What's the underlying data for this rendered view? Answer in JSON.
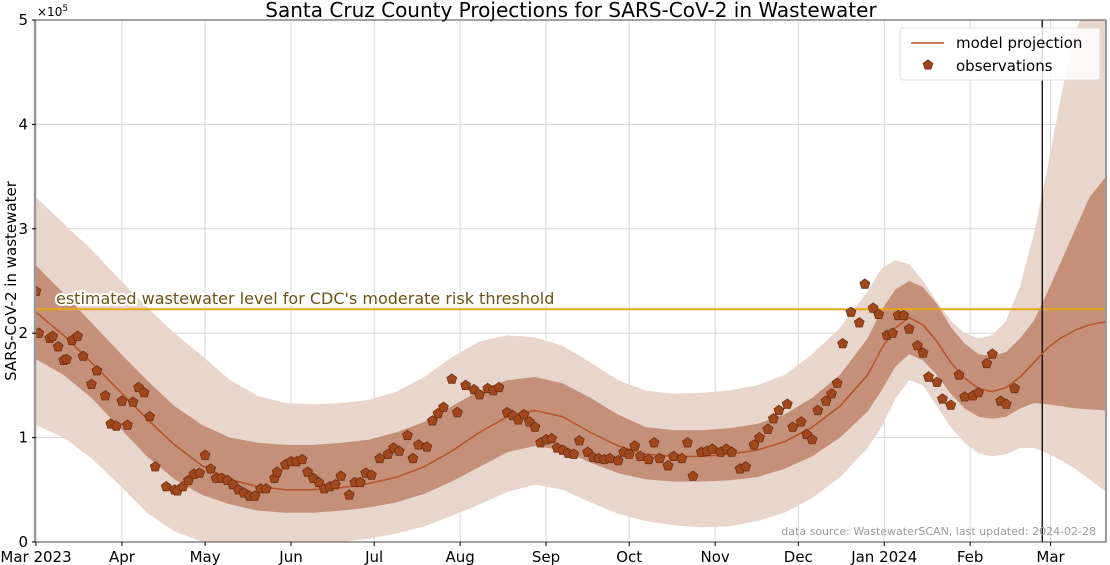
{
  "chart_data": {
    "type": "line",
    "title": "Santa Cruz County Projections for SARS-CoV-2 in Wastewater",
    "xlabel": "",
    "ylabel": "SARS-CoV-2 in wastewater",
    "y_multiplier_label": "×10",
    "y_multiplier_exponent": "5",
    "y_units_note": "values below are in units of 1e5",
    "ylim": [
      0,
      5
    ],
    "y_ticks": [
      0,
      1,
      2,
      3,
      4,
      5
    ],
    "y_tick_labels": [
      "0",
      "1",
      "2",
      "3",
      "4",
      "5"
    ],
    "x_origin_date": "2023-03-01",
    "x_units": "days since 2023-03-01",
    "xlim": [
      0,
      386
    ],
    "x_ticks": [
      0,
      31,
      61,
      92,
      122,
      153,
      184,
      214,
      245,
      275,
      306,
      337,
      366
    ],
    "x_tick_labels": [
      "Mar 2023",
      "Apr",
      "May",
      "Jun",
      "Jul",
      "Aug",
      "Sep",
      "Oct",
      "Nov",
      "Dec",
      "Jan 2024",
      "Feb",
      "Mar"
    ],
    "grid": true,
    "legend": {
      "position": "top-right",
      "entries": [
        {
          "label": "model projection",
          "kind": "line"
        },
        {
          "label": "observations",
          "kind": "pentagon-marker"
        }
      ]
    },
    "threshold": {
      "value": 2.23,
      "label": "estimated wastewater level for CDC's moderate risk threshold",
      "color": "#e6a817"
    },
    "forecast_start_day": 363,
    "annotation_source": "data source: WastewaterSCAN, last updated: 2024-02-28",
    "colors": {
      "line": "#b5532a",
      "marker_fill": "#a0481d",
      "marker_edge": "#6e2e12",
      "band_inner": "#c4907a",
      "band_outer": "#e8d5cc",
      "grid": "#d6d6d6",
      "vline": "#000000"
    },
    "model": {
      "x": [
        0,
        10,
        20,
        30,
        40,
        50,
        60,
        70,
        80,
        90,
        100,
        110,
        120,
        130,
        140,
        150,
        160,
        170,
        180,
        190,
        200,
        210,
        220,
        230,
        240,
        250,
        260,
        270,
        280,
        290,
        300,
        305,
        310,
        315,
        320,
        325,
        330,
        335,
        340,
        345,
        350,
        355,
        360,
        365,
        370,
        375,
        380,
        386
      ],
      "median": [
        2.2,
        1.98,
        1.72,
        1.45,
        1.18,
        0.93,
        0.73,
        0.6,
        0.53,
        0.5,
        0.5,
        0.52,
        0.56,
        0.62,
        0.72,
        0.87,
        1.05,
        1.2,
        1.26,
        1.2,
        1.05,
        0.92,
        0.84,
        0.82,
        0.82,
        0.84,
        0.88,
        0.96,
        1.1,
        1.3,
        1.6,
        1.85,
        2.05,
        2.15,
        2.08,
        1.92,
        1.72,
        1.57,
        1.47,
        1.44,
        1.48,
        1.58,
        1.72,
        1.86,
        1.96,
        2.03,
        2.08,
        2.11
      ],
      "inner_lower": [
        1.75,
        1.6,
        1.38,
        1.1,
        0.82,
        0.6,
        0.45,
        0.36,
        0.3,
        0.28,
        0.28,
        0.3,
        0.33,
        0.38,
        0.46,
        0.58,
        0.72,
        0.86,
        0.92,
        0.88,
        0.76,
        0.66,
        0.6,
        0.58,
        0.58,
        0.59,
        0.62,
        0.7,
        0.82,
        1.0,
        1.25,
        1.45,
        1.68,
        1.8,
        1.74,
        1.6,
        1.42,
        1.28,
        1.2,
        1.18,
        1.2,
        1.28,
        1.33,
        1.32,
        1.3,
        1.28,
        1.27,
        1.26
      ],
      "inner_upper": [
        2.65,
        2.38,
        2.1,
        1.82,
        1.55,
        1.3,
        1.12,
        1.0,
        0.95,
        0.93,
        0.93,
        0.95,
        0.98,
        1.05,
        1.15,
        1.3,
        1.45,
        1.55,
        1.58,
        1.52,
        1.38,
        1.22,
        1.1,
        1.07,
        1.07,
        1.09,
        1.13,
        1.22,
        1.38,
        1.6,
        1.95,
        2.22,
        2.42,
        2.5,
        2.44,
        2.28,
        2.06,
        1.9,
        1.8,
        1.78,
        1.82,
        1.95,
        2.12,
        2.4,
        2.7,
        3.0,
        3.3,
        3.5
      ],
      "outer_lower": [
        1.12,
        1.0,
        0.8,
        0.55,
        0.28,
        0.1,
        0.0,
        0.0,
        0.0,
        0.0,
        0.0,
        0.0,
        0.03,
        0.08,
        0.15,
        0.25,
        0.36,
        0.48,
        0.55,
        0.5,
        0.38,
        0.27,
        0.2,
        0.16,
        0.14,
        0.15,
        0.2,
        0.28,
        0.42,
        0.62,
        0.9,
        1.1,
        1.37,
        1.55,
        1.5,
        1.3,
        1.1,
        0.95,
        0.85,
        0.82,
        0.84,
        0.9,
        0.9,
        0.85,
        0.78,
        0.7,
        0.6,
        0.48
      ],
      "outer_upper": [
        3.3,
        3.05,
        2.8,
        2.52,
        2.25,
        2.0,
        1.78,
        1.55,
        1.4,
        1.33,
        1.32,
        1.33,
        1.36,
        1.44,
        1.58,
        1.77,
        1.92,
        1.98,
        1.96,
        1.88,
        1.72,
        1.55,
        1.45,
        1.42,
        1.43,
        1.45,
        1.5,
        1.6,
        1.8,
        2.05,
        2.4,
        2.62,
        2.7,
        2.66,
        2.5,
        2.3,
        2.12,
        2.0,
        1.95,
        1.98,
        2.12,
        2.45,
        2.95,
        3.6,
        4.3,
        4.9,
        5.2,
        5.5
      ]
    },
    "observations": {
      "x": [
        0,
        1,
        5,
        6,
        8,
        10,
        11,
        13,
        15,
        17,
        20,
        22,
        25,
        27,
        29,
        31,
        33,
        35,
        37,
        39,
        41,
        43,
        47,
        50,
        51,
        53,
        55,
        57,
        59,
        61,
        63,
        65,
        67,
        69,
        71,
        73,
        75,
        77,
        79,
        81,
        83,
        86,
        87,
        90,
        92,
        94,
        96,
        98,
        100,
        102,
        104,
        106,
        108,
        110,
        113,
        115,
        117,
        119,
        121,
        124,
        127,
        129,
        131,
        134,
        136,
        138,
        141,
        143,
        145,
        147,
        150,
        152,
        155,
        158,
        160,
        163,
        165,
        167,
        170,
        172,
        174,
        176,
        178,
        180,
        182,
        184,
        186,
        188,
        190,
        192,
        194,
        196,
        199,
        201,
        203,
        205,
        207,
        210,
        212,
        214,
        216,
        218,
        221,
        223,
        225,
        228,
        230,
        233,
        235,
        237,
        240,
        242,
        244,
        247,
        249,
        251,
        254,
        256,
        259,
        261,
        264,
        266,
        268,
        271,
        273,
        276,
        278,
        280,
        282,
        285,
        287,
        289,
        291,
        294,
        297,
        299,
        302,
        304,
        307,
        309,
        311,
        313,
        315,
        318,
        320,
        322,
        325,
        327,
        330,
        333,
        335,
        338,
        340,
        343,
        345,
        348,
        350,
        353
      ],
      "y": [
        2.4,
        2.0,
        1.95,
        1.97,
        1.87,
        1.74,
        1.75,
        1.93,
        1.97,
        1.78,
        1.51,
        1.64,
        1.4,
        1.13,
        1.11,
        1.35,
        1.12,
        1.34,
        1.48,
        1.43,
        1.2,
        0.72,
        0.53,
        0.5,
        0.49,
        0.53,
        0.59,
        0.65,
        0.66,
        0.83,
        0.7,
        0.61,
        0.61,
        0.59,
        0.55,
        0.5,
        0.47,
        0.44,
        0.44,
        0.51,
        0.51,
        0.61,
        0.67,
        0.74,
        0.77,
        0.77,
        0.79,
        0.67,
        0.61,
        0.57,
        0.51,
        0.53,
        0.55,
        0.63,
        0.45,
        0.57,
        0.57,
        0.66,
        0.64,
        0.8,
        0.84,
        0.9,
        0.87,
        1.02,
        0.8,
        0.93,
        0.91,
        1.16,
        1.23,
        1.29,
        1.56,
        1.24,
        1.5,
        1.46,
        1.41,
        1.47,
        1.45,
        1.48,
        1.24,
        1.21,
        1.17,
        1.22,
        1.15,
        1.1,
        0.95,
        0.98,
        0.99,
        0.9,
        0.88,
        0.85,
        0.84,
        0.97,
        0.86,
        0.81,
        0.8,
        0.79,
        0.8,
        0.78,
        0.86,
        0.84,
        0.92,
        0.82,
        0.79,
        0.95,
        0.8,
        0.73,
        0.82,
        0.8,
        0.95,
        0.63,
        0.86,
        0.87,
        0.89,
        0.86,
        0.89,
        0.86,
        0.7,
        0.72,
        0.93,
        1.0,
        1.08,
        1.18,
        1.26,
        1.32,
        1.1,
        1.15,
        1.03,
        0.98,
        1.26,
        1.35,
        1.42,
        1.52,
        1.9,
        2.2,
        2.1,
        2.47,
        2.24,
        2.18,
        1.98,
        2.0,
        2.17,
        2.17,
        2.04,
        1.88,
        1.81,
        1.58,
        1.53,
        1.37,
        1.31,
        1.6,
        1.39,
        1.4,
        1.43,
        1.71,
        1.8,
        1.35,
        1.32,
        1.47
      ]
    }
  }
}
